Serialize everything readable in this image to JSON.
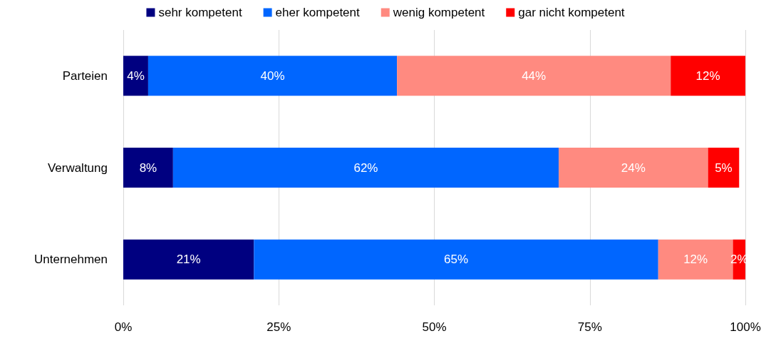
{
  "chart_data": {
    "type": "bar",
    "orientation": "horizontal",
    "stacked": true,
    "categories": [
      "Parteien",
      "Verwaltung",
      "Unternehmen"
    ],
    "series": [
      {
        "name": "sehr kompetent",
        "color": "#000080",
        "values": [
          4,
          8,
          21
        ],
        "value_labels": [
          "4%",
          "8%",
          "21%"
        ]
      },
      {
        "name": "eher kompetent",
        "color": "#0066ff",
        "values": [
          40,
          62,
          65
        ],
        "value_labels": [
          "40%",
          "62%",
          "65%"
        ]
      },
      {
        "name": "wenig kompetent",
        "color": "#ff8a80",
        "values": [
          44,
          24,
          12
        ],
        "value_labels": [
          "44%",
          "24%",
          "12%"
        ]
      },
      {
        "name": "gar nicht kompetent",
        "color": "#ff0000",
        "values": [
          12,
          5,
          2
        ],
        "value_labels": [
          "12%",
          "5%",
          "2%"
        ]
      }
    ],
    "xlim": [
      0,
      100
    ],
    "xticks": [
      {
        "value": 0,
        "label": "0%"
      },
      {
        "value": 25,
        "label": "25%"
      },
      {
        "value": 50,
        "label": "50%"
      },
      {
        "value": 75,
        "label": "75%"
      },
      {
        "value": 100,
        "label": "100%"
      }
    ],
    "grid": "x",
    "legend": "top"
  }
}
